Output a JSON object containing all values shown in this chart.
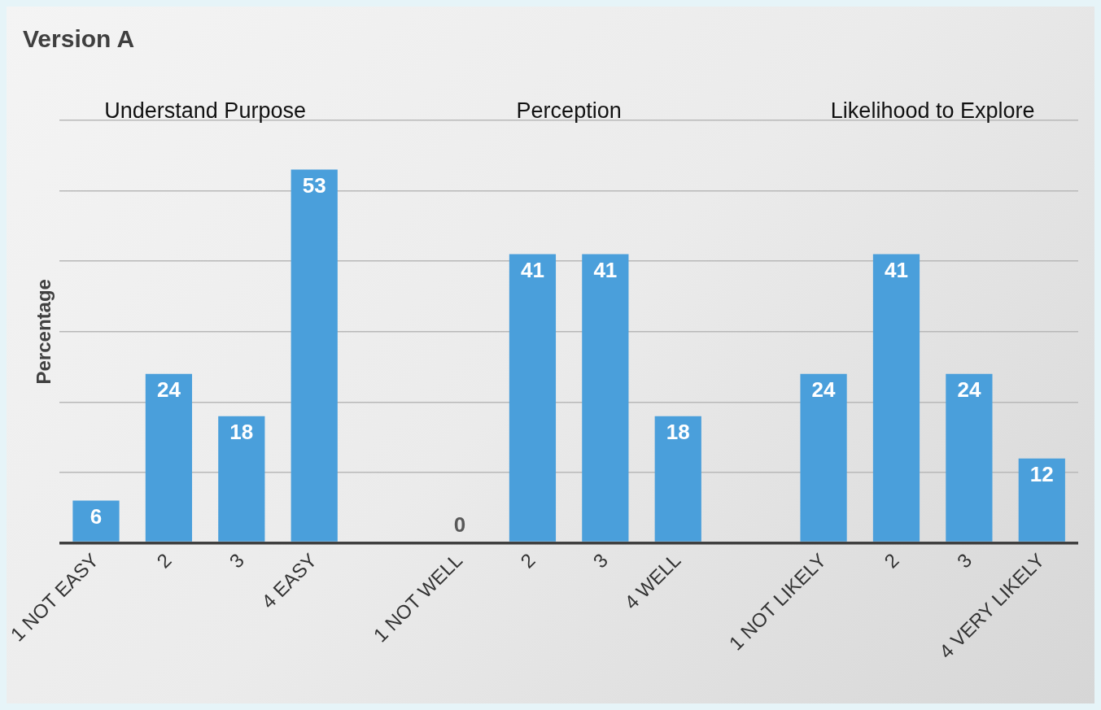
{
  "chart_data": {
    "type": "bar",
    "title": "Version A",
    "ylabel": "Percentage",
    "categories": [
      "1 NOT EASY",
      "2",
      "3",
      "4 EASY",
      null,
      "1 NOT WELL",
      "2",
      "3",
      "4 WELL",
      null,
      "1 NOT LIKELY",
      "2",
      "3",
      "4 VERY LIKELY"
    ],
    "values": [
      6,
      24,
      18,
      53,
      null,
      0,
      41,
      41,
      18,
      null,
      24,
      41,
      24,
      12
    ],
    "color": "#4a9fdb",
    "tick_labels": "x",
    "grid": "y",
    "legend": false,
    "data_labels": true,
    "annotations": [
      "Understand Purpose",
      "Perception",
      "Likelihood to Explore"
    ]
  }
}
